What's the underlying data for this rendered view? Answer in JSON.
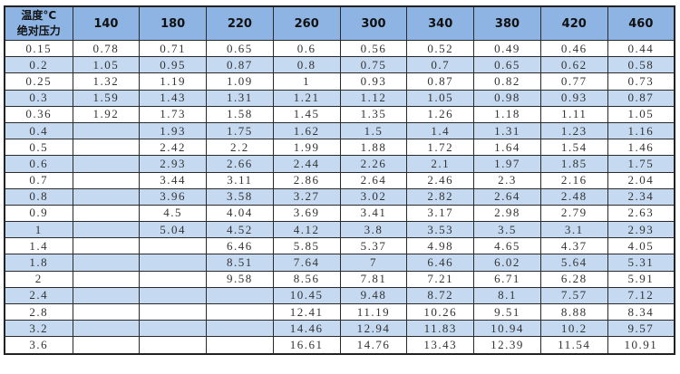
{
  "table": {
    "corner_top": "温度°C",
    "corner_bottom": "绝对压力",
    "colors": {
      "header_bg": "#8db4e2",
      "alt_row_bg": "#c5d9f1"
    },
    "temperatures": [
      "140",
      "180",
      "220",
      "260",
      "300",
      "340",
      "380",
      "420",
      "460"
    ],
    "rows": [
      {
        "pressure": "0.15",
        "values": [
          "0.78",
          "0.71",
          "0.65",
          "0.6",
          "0.56",
          "0.52",
          "0.49",
          "0.46",
          "0.44"
        ]
      },
      {
        "pressure": "0.2",
        "values": [
          "1.05",
          "0.95",
          "0.87",
          "0.8",
          "0.75",
          "0.7",
          "0.65",
          "0.62",
          "0.58"
        ]
      },
      {
        "pressure": "0.25",
        "values": [
          "1.32",
          "1.19",
          "1.09",
          "1",
          "0.93",
          "0.87",
          "0.82",
          "0.77",
          "0.73"
        ]
      },
      {
        "pressure": "0.3",
        "values": [
          "1.59",
          "1.43",
          "1.31",
          "1.21",
          "1.12",
          "1.05",
          "0.98",
          "0.93",
          "0.87"
        ]
      },
      {
        "pressure": "0.36",
        "values": [
          "1.92",
          "1.73",
          "1.58",
          "1.45",
          "1.35",
          "1.26",
          "1.18",
          "1.11",
          "1.05"
        ]
      },
      {
        "pressure": "0.4",
        "values": [
          "",
          "1.93",
          "1.75",
          "1.62",
          "1.5",
          "1.4",
          "1.31",
          "1.23",
          "1.16"
        ]
      },
      {
        "pressure": "0.5",
        "values": [
          "",
          "2.42",
          "2.2",
          "1.99",
          "1.88",
          "1.72",
          "1.64",
          "1.54",
          "1.46"
        ]
      },
      {
        "pressure": "0.6",
        "values": [
          "",
          "2.93",
          "2.66",
          "2.44",
          "2.26",
          "2.1",
          "1.97",
          "1.85",
          "1.75"
        ]
      },
      {
        "pressure": "0.7",
        "values": [
          "",
          "3.44",
          "3.11",
          "2.86",
          "2.64",
          "2.46",
          "2.3",
          "2.16",
          "2.04"
        ]
      },
      {
        "pressure": "0.8",
        "values": [
          "",
          "3.96",
          "3.58",
          "3.27",
          "3.02",
          "2.82",
          "2.64",
          "2.48",
          "2.34"
        ]
      },
      {
        "pressure": "0.9",
        "values": [
          "",
          "4.5",
          "4.04",
          "3.69",
          "3.41",
          "3.17",
          "2.98",
          "2.79",
          "2.63"
        ]
      },
      {
        "pressure": "1",
        "values": [
          "",
          "5.04",
          "4.52",
          "4.12",
          "3.8",
          "3.53",
          "3.5",
          "3.1",
          "2.93"
        ]
      },
      {
        "pressure": "1.4",
        "values": [
          "",
          "",
          "6.46",
          "5.85",
          "5.37",
          "4.98",
          "4.65",
          "4.37",
          "4.05"
        ]
      },
      {
        "pressure": "1.8",
        "values": [
          "",
          "",
          "8.51",
          "7.64",
          "7",
          "6.46",
          "6.02",
          "5.64",
          "5.31"
        ]
      },
      {
        "pressure": "2",
        "values": [
          "",
          "",
          "9.58",
          "8.56",
          "7.81",
          "7.21",
          "6.71",
          "6.28",
          "5.91"
        ]
      },
      {
        "pressure": "2.4",
        "values": [
          "",
          "",
          "",
          "10.45",
          "9.48",
          "8.72",
          "8.1",
          "7.57",
          "7.12"
        ]
      },
      {
        "pressure": "2.8",
        "values": [
          "",
          "",
          "",
          "12.41",
          "11.19",
          "10.26",
          "9.51",
          "8.88",
          "8.34"
        ]
      },
      {
        "pressure": "3.2",
        "values": [
          "",
          "",
          "",
          "14.46",
          "12.94",
          "11.83",
          "10.94",
          "10.2",
          "9.57"
        ]
      },
      {
        "pressure": "3.6",
        "values": [
          "",
          "",
          "",
          "16.61",
          "14.76",
          "13.43",
          "12.39",
          "11.54",
          "10.91"
        ]
      }
    ]
  }
}
